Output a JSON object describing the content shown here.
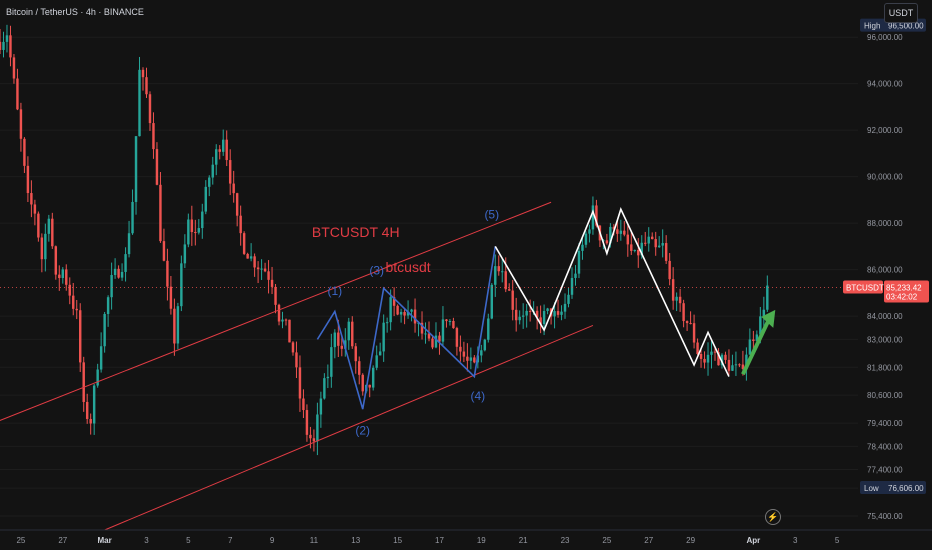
{
  "header": {
    "title": "Bitcoin / TetherUS · 4h · BINANCE",
    "currency_button": "USDT"
  },
  "colors": {
    "up": "#26a69a",
    "down": "#ef5350",
    "blue_wave": "#3d68c9",
    "white_wave": "#ffffff",
    "channel": "#e03c44",
    "arrow": "#4caf50",
    "background": "#131313",
    "grid": "#1d1d1d"
  },
  "chart_data": {
    "type": "candlestick",
    "symbol_label": "BTCUSDT",
    "y_axis_ticks": [
      "75,400.00",
      "76,600.00",
      "77,400.00",
      "78,400.00",
      "79,400.00",
      "80,600.00",
      "81,800.00",
      "83,000.00",
      "84,000.00",
      "86,000.00",
      "88,000.00",
      "90,000.00",
      "92,000.00",
      "94,000.00",
      "96,000.00"
    ],
    "x_axis_ticks": [
      "25",
      "27",
      "Mar",
      "3",
      "5",
      "7",
      "9",
      "11",
      "13",
      "15",
      "17",
      "19",
      "21",
      "23",
      "25",
      "27",
      "29",
      "Apr",
      "3",
      "5"
    ],
    "high": {
      "label": "High",
      "value": "96,500.00"
    },
    "low": {
      "label": "Low",
      "value": "76,606.00"
    },
    "last": {
      "symbol": "BTCUSDT",
      "price": "85,233.42",
      "countdown": "03:42:02"
    },
    "ylim": [
      74800,
      97600
    ],
    "x_range": [
      "Feb 24",
      "Apr 6"
    ],
    "price_path": [
      [
        "Feb 24 00:00",
        95800
      ],
      [
        "Feb 24 08:00",
        96200
      ],
      [
        "Feb 24 16:00",
        94000
      ],
      [
        "Feb 25 00:00",
        91500
      ],
      [
        "Feb 25 08:00",
        89000
      ],
      [
        "Feb 25 16:00",
        88500
      ],
      [
        "Feb 26 00:00",
        86500
      ],
      [
        "Feb 26 08:00",
        88500
      ],
      [
        "Feb 26 16:00",
        85500
      ],
      [
        "Feb 27 00:00",
        86000
      ],
      [
        "Feb 27 08:00",
        85000
      ],
      [
        "Feb 27 16:00",
        84000
      ],
      [
        "Feb 28 00:00",
        80000
      ],
      [
        "Feb 28 08:00",
        79500
      ],
      [
        "Feb 28 16:00",
        82000
      ],
      [
        "Mar 1 00:00",
        84000
      ],
      [
        "Mar 1 08:00",
        85500
      ],
      [
        "Mar 1 16:00",
        86000
      ],
      [
        "Mar 2 00:00",
        86500
      ],
      [
        "Mar 2 08:00",
        89000
      ],
      [
        "Mar 2 16:00",
        94500
      ],
      [
        "Mar 3 00:00",
        93500
      ],
      [
        "Mar 3 08:00",
        91500
      ],
      [
        "Mar 3 16:00",
        87500
      ],
      [
        "Mar 4 00:00",
        85000
      ],
      [
        "Mar 4 08:00",
        83000
      ],
      [
        "Mar 4 16:00",
        86000
      ],
      [
        "Mar 5 00:00",
        88000
      ],
      [
        "Mar 5 08:00",
        87500
      ],
      [
        "Mar 5 16:00",
        88500
      ],
      [
        "Mar 6 00:00",
        90000
      ],
      [
        "Mar 6 08:00",
        91000
      ],
      [
        "Mar 6 16:00",
        91800
      ],
      [
        "Mar 7 00:00",
        90000
      ],
      [
        "Mar 7 08:00",
        88000
      ],
      [
        "Mar 7 16:00",
        87000
      ],
      [
        "Mar 8 00:00",
        86500
      ],
      [
        "Mar 8 08:00",
        86200
      ],
      [
        "Mar 8 16:00",
        86000
      ],
      [
        "Mar 9 00:00",
        85500
      ],
      [
        "Mar 9 08:00",
        84000
      ],
      [
        "Mar 9 16:00",
        83500
      ],
      [
        "Mar 10 00:00",
        82500
      ],
      [
        "Mar 10 08:00",
        80500
      ],
      [
        "Mar 10 16:00",
        79000
      ],
      [
        "Mar 11 00:00",
        78500
      ],
      [
        "Mar 11 08:00",
        80500
      ],
      [
        "Mar 11 16:00",
        81500
      ],
      [
        "Mar 12 00:00",
        83500
      ],
      [
        "Mar 12 08:00",
        82500
      ],
      [
        "Mar 12 16:00",
        83500
      ],
      [
        "Mar 13 00:00",
        82000
      ],
      [
        "Mar 13 08:00",
        80500
      ],
      [
        "Mar 13 16:00",
        81000
      ],
      [
        "Mar 14 00:00",
        82000
      ],
      [
        "Mar 14 08:00",
        83500
      ],
      [
        "Mar 14 16:00",
        84500
      ],
      [
        "Mar 15 00:00",
        84000
      ],
      [
        "Mar 15 08:00",
        84200
      ],
      [
        "Mar 15 16:00",
        84000
      ],
      [
        "Mar 16 00:00",
        83500
      ],
      [
        "Mar 16 08:00",
        83000
      ],
      [
        "Mar 16 16:00",
        82500
      ],
      [
        "Mar 17 00:00",
        83200
      ],
      [
        "Mar 17 08:00",
        84000
      ],
      [
        "Mar 17 16:00",
        83500
      ],
      [
        "Mar 18 00:00",
        82500
      ],
      [
        "Mar 18 08:00",
        82000
      ],
      [
        "Mar 18 16:00",
        81800
      ],
      [
        "Mar 19 00:00",
        82500
      ],
      [
        "Mar 19 08:00",
        84000
      ],
      [
        "Mar 19 16:00",
        86500
      ],
      [
        "Mar 20 00:00",
        86000
      ],
      [
        "Mar 20 08:00",
        85000
      ],
      [
        "Mar 20 16:00",
        84000
      ],
      [
        "Mar 21 00:00",
        84200
      ],
      [
        "Mar 21 08:00",
        84000
      ],
      [
        "Mar 21 16:00",
        83800
      ],
      [
        "Mar 22 00:00",
        84000
      ],
      [
        "Mar 22 08:00",
        84200
      ],
      [
        "Mar 22 16:00",
        83800
      ],
      [
        "Mar 23 00:00",
        84500
      ],
      [
        "Mar 23 08:00",
        85500
      ],
      [
        "Mar 23 16:00",
        86500
      ],
      [
        "Mar 24 00:00",
        87500
      ],
      [
        "Mar 24 08:00",
        88500
      ],
      [
        "Mar 24 16:00",
        87500
      ],
      [
        "Mar 25 00:00",
        87200
      ],
      [
        "Mar 25 08:00",
        88000
      ],
      [
        "Mar 25 16:00",
        87500
      ],
      [
        "Mar 26 00:00",
        87000
      ],
      [
        "Mar 26 08:00",
        86500
      ],
      [
        "Mar 26 16:00",
        87000
      ],
      [
        "Mar 27 00:00",
        87200
      ],
      [
        "Mar 27 08:00",
        86800
      ],
      [
        "Mar 27 16:00",
        87000
      ],
      [
        "Mar 28 00:00",
        85500
      ],
      [
        "Mar 28 08:00",
        84500
      ],
      [
        "Mar 28 16:00",
        84000
      ],
      [
        "Mar 29 00:00",
        83500
      ],
      [
        "Mar 29 08:00",
        82500
      ],
      [
        "Mar 29 16:00",
        82000
      ],
      [
        "Mar 30 00:00",
        82500
      ],
      [
        "Mar 30 08:00",
        82200
      ],
      [
        "Mar 30 16:00",
        82000
      ],
      [
        "Mar 31 00:00",
        81800
      ],
      [
        "Mar 31 08:00",
        81600
      ],
      [
        "Mar 31 16:00",
        82500
      ],
      [
        "Apr 1 00:00",
        83200
      ],
      [
        "Apr 1 08:00",
        83800
      ],
      [
        "Apr 1 16:00",
        85233
      ]
    ],
    "channel": {
      "upper": [
        [
          "Feb 22 00:00",
          78800
        ],
        [
          "Mar 22 08:00",
          88900
        ]
      ],
      "lower": [
        [
          "Mar 1 00:00",
          74800
        ],
        [
          "Mar 24 08:00",
          83600
        ]
      ]
    },
    "annotations": [
      {
        "text": "BTCUSDT 4H",
        "x": "Mar 13 00:00",
        "y": 87400,
        "color": "#e03c44"
      },
      {
        "text": "btcusdt",
        "x": "Mar 15 12:00",
        "y": 85900,
        "color": "#e03c44"
      },
      {
        "text": "(1)",
        "x": "Mar 12 00:00",
        "y": 84900,
        "color": "#3d68c9"
      },
      {
        "text": "(2)",
        "x": "Mar 13 08:00",
        "y": 78900,
        "color": "#3d68c9"
      },
      {
        "text": "(3)",
        "x": "Mar 14 00:00",
        "y": 85800,
        "color": "#3d68c9"
      },
      {
        "text": "(4)",
        "x": "Mar 18 20:00",
        "y": 80400,
        "color": "#3d68c9"
      },
      {
        "text": "(5)",
        "x": "Mar 19 12:00",
        "y": 88200,
        "color": "#3d68c9"
      }
    ],
    "blue_wave": [
      [
        "Mar 11 04:00",
        83000
      ],
      [
        "Mar 12 00:00",
        84200
      ],
      [
        "Mar 13 08:00",
        80000
      ],
      [
        "Mar 14 08:00",
        85200
      ],
      [
        "Mar 18 16:00",
        81400
      ],
      [
        "Mar 19 16:00",
        87000
      ]
    ],
    "white_wave": [
      [
        "Mar 19 16:00",
        87000
      ],
      [
        "Mar 22 00:00",
        83400
      ],
      [
        "Mar 24 08:00",
        88500
      ],
      [
        "Mar 25 00:00",
        86700
      ],
      [
        "Mar 25 16:00",
        88600
      ],
      [
        "Mar 29 04:00",
        81900
      ],
      [
        "Mar 29 20:00",
        83300
      ],
      [
        "Mar 30 20:00",
        81400
      ]
    ],
    "green_arrow": {
      "from": [
        "Mar 31 12:00",
        81500
      ],
      "to": [
        "Apr 2 00:00",
        84100
      ]
    }
  }
}
